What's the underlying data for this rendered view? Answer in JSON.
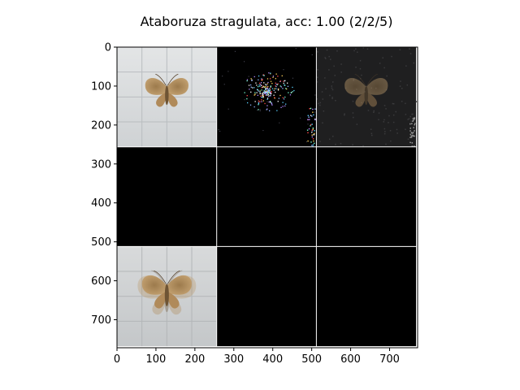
{
  "chart_data": {
    "type": "image-grid",
    "title": "Ataboruza stragulata, acc: 1.00 (2/2/5)",
    "xlabel": "",
    "ylabel": "",
    "xlim": [
      0,
      772
    ],
    "ylim": [
      772,
      0
    ],
    "x_ticks": [
      0,
      100,
      200,
      300,
      400,
      500,
      600,
      700
    ],
    "y_ticks": [
      0,
      100,
      200,
      300,
      400,
      500,
      600,
      700
    ],
    "grid": false,
    "tile_size": 256,
    "rows": 3,
    "cols": 3,
    "tiles": [
      {
        "row": 0,
        "col": 0,
        "content": "moth-photo"
      },
      {
        "row": 0,
        "col": 1,
        "content": "sparse-attribution-map"
      },
      {
        "row": 0,
        "col": 2,
        "content": "dim-moth-photo"
      },
      {
        "row": 1,
        "col": 0,
        "content": "black"
      },
      {
        "row": 1,
        "col": 1,
        "content": "black"
      },
      {
        "row": 1,
        "col": 2,
        "content": "black"
      },
      {
        "row": 2,
        "col": 0,
        "content": "moth-overlay-photo"
      },
      {
        "row": 2,
        "col": 1,
        "content": "black"
      },
      {
        "row": 2,
        "col": 2,
        "content": "black"
      }
    ]
  }
}
